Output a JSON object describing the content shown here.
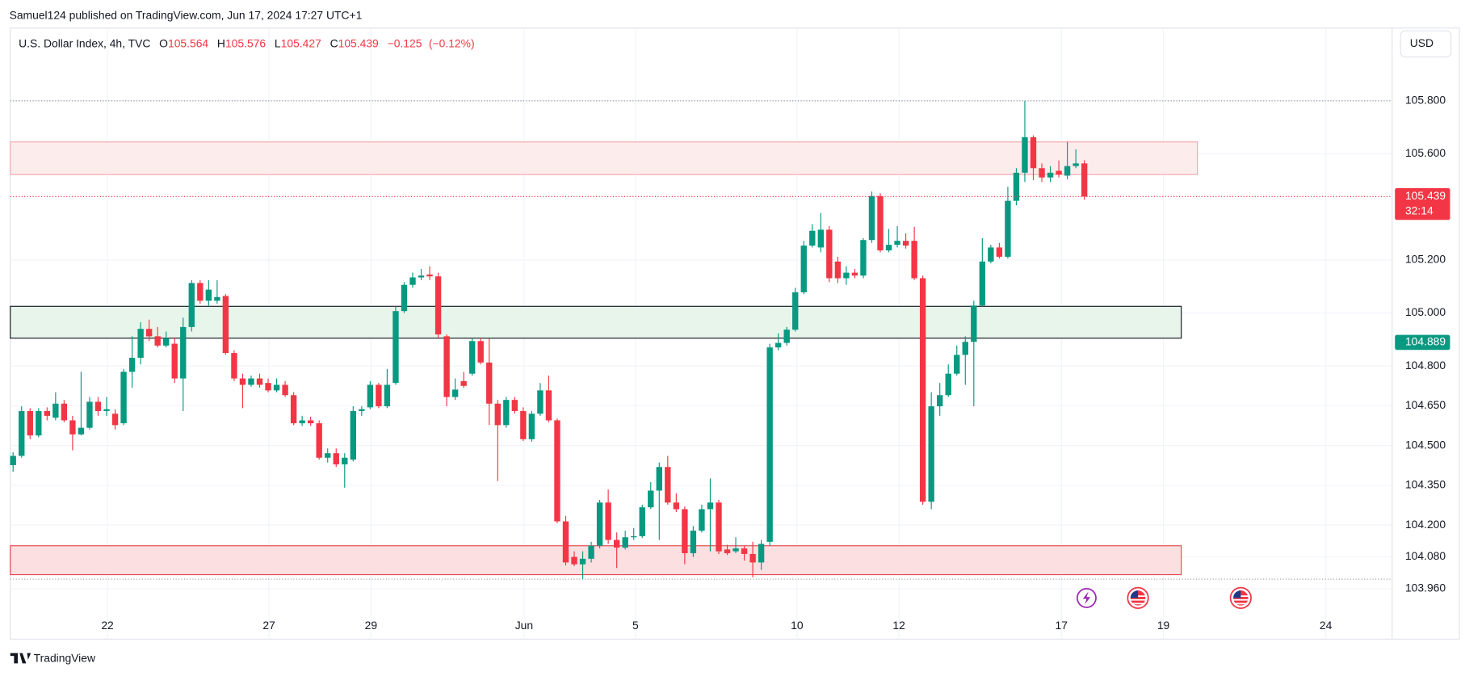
{
  "header": {
    "title": "Samuel124 published on TradingView.com, Jun 17, 2024 17:27 UTC+1"
  },
  "footer": {
    "brand": "TradingView"
  },
  "currency_button": "USD",
  "chart_data": {
    "type": "candlestick",
    "legend": {
      "title": "U.S. Dollar Index, 4h, TVC",
      "letters": [
        "O",
        "H",
        "L",
        "C"
      ],
      "values": [
        105.564,
        105.576,
        105.427,
        105.439
      ],
      "change": {
        "value": -0.125,
        "label": "−0.125"
      },
      "change_pct": {
        "value": -0.12,
        "label": "(−0.12%)"
      }
    },
    "up_color": "#089981",
    "down_color": "#f23645",
    "xlim": [
      -0.33,
      162.2
    ],
    "ylim": [
      103.77,
      106.057
    ],
    "grid": true,
    "xticks": [
      {
        "value": 11.1,
        "label": "22"
      },
      {
        "value": 30.1,
        "label": "27"
      },
      {
        "value": 42.1,
        "label": "29"
      },
      {
        "value": 60.1,
        "label": "Jun"
      },
      {
        "value": 73.2,
        "label": "5"
      },
      {
        "value": 92.2,
        "label": "10"
      },
      {
        "value": 104.2,
        "label": "12"
      },
      {
        "value": 123.3,
        "label": "17"
      },
      {
        "value": 135.3,
        "label": "19"
      },
      {
        "value": 154.4,
        "label": "24"
      }
    ],
    "yticks": [
      {
        "value": 105.8,
        "label": "105.800"
      },
      {
        "value": 105.6,
        "label": "105.600"
      },
      {
        "value": 105.2,
        "label": "105.200"
      },
      {
        "value": 105.0,
        "label": "105.000"
      },
      {
        "value": 104.8,
        "label": "104.800"
      },
      {
        "value": 104.65,
        "label": "104.650"
      },
      {
        "value": 104.5,
        "label": "104.500"
      },
      {
        "value": 104.35,
        "label": "104.350"
      },
      {
        "value": 104.2,
        "label": "104.200"
      },
      {
        "value": 104.08,
        "label": "104.080"
      },
      {
        "value": 103.96,
        "label": "103.960"
      }
    ],
    "zones": [
      {
        "top": 105.645,
        "bottom": 105.522,
        "end": 139.3,
        "fill": "#fdecec",
        "stroke": "#f3a6ab"
      },
      {
        "top": 105.025,
        "bottom": 104.905,
        "end": 137.4,
        "fill": "#e8f5ea",
        "stroke": "#131722"
      },
      {
        "top": 104.122,
        "bottom": 104.013,
        "end": 137.4,
        "fill": "#fbdfe1",
        "stroke": "#e5474f"
      }
    ],
    "range_lines": [
      105.8,
      103.996
    ],
    "countdown": "32:14",
    "indicator_label": {
      "value": 104.889,
      "color": "#089981"
    },
    "ohlc": [
      [
        104.426,
        104.475,
        104.401,
        104.461
      ],
      [
        104.461,
        104.648,
        104.454,
        104.63
      ],
      [
        104.63,
        104.641,
        104.524,
        104.538
      ],
      [
        104.538,
        104.641,
        104.531,
        104.63
      ],
      [
        104.63,
        104.644,
        104.595,
        104.612
      ],
      [
        104.605,
        104.701,
        104.595,
        104.658
      ],
      [
        104.658,
        104.672,
        104.588,
        104.595
      ],
      [
        104.595,
        104.612,
        104.482,
        104.542
      ],
      [
        104.542,
        104.778,
        104.538,
        104.567
      ],
      [
        104.567,
        104.683,
        104.56,
        104.665
      ],
      [
        104.665,
        104.683,
        104.612,
        104.63
      ],
      [
        104.63,
        104.683,
        104.612,
        104.637
      ],
      [
        104.62,
        104.637,
        104.56,
        104.577
      ],
      [
        104.584,
        104.789,
        104.577,
        104.778
      ],
      [
        104.778,
        104.912,
        104.718,
        104.831
      ],
      [
        104.831,
        104.965,
        104.806,
        104.94
      ],
      [
        104.94,
        104.975,
        104.894,
        104.912
      ],
      [
        104.912,
        104.947,
        104.87,
        104.877
      ],
      [
        104.877,
        104.93,
        104.87,
        104.905
      ],
      [
        104.884,
        104.905,
        104.736,
        104.753
      ],
      [
        104.753,
        104.982,
        104.63,
        104.947
      ],
      [
        104.947,
        105.124,
        104.93,
        105.113
      ],
      [
        105.113,
        105.124,
        105.035,
        105.046
      ],
      [
        105.046,
        105.124,
        105.025,
        105.088
      ],
      [
        105.046,
        105.124,
        105.035,
        105.06
      ],
      [
        105.064,
        105.071,
        104.842,
        104.849
      ],
      [
        104.849,
        104.859,
        104.743,
        104.753
      ],
      [
        104.753,
        104.771,
        104.641,
        104.729
      ],
      [
        104.729,
        104.764,
        104.722,
        104.753
      ],
      [
        104.753,
        104.771,
        104.718,
        104.729
      ],
      [
        104.736,
        104.753,
        104.701,
        104.708
      ],
      [
        104.708,
        104.753,
        104.701,
        104.729
      ],
      [
        104.729,
        104.743,
        104.683,
        104.69
      ],
      [
        104.69,
        104.701,
        104.577,
        104.584
      ],
      [
        104.584,
        104.612,
        104.574,
        104.595
      ],
      [
        104.595,
        104.609,
        104.574,
        104.584
      ],
      [
        104.584,
        104.595,
        104.447,
        104.454
      ],
      [
        104.454,
        104.489,
        104.436,
        104.471
      ],
      [
        104.471,
        104.489,
        104.419,
        104.429
      ],
      [
        104.429,
        104.471,
        104.341,
        104.454
      ],
      [
        104.447,
        104.648,
        104.44,
        104.63
      ],
      [
        104.63,
        104.648,
        104.612,
        104.637
      ],
      [
        104.644,
        104.743,
        104.637,
        104.729
      ],
      [
        104.729,
        104.736,
        104.641,
        104.648
      ],
      [
        104.648,
        104.789,
        104.641,
        104.729
      ],
      [
        104.736,
        105.025,
        104.729,
        105.007
      ],
      [
        105.007,
        105.116,
        105.0,
        105.106
      ],
      [
        105.106,
        105.152,
        105.095,
        105.134
      ],
      [
        105.134,
        105.166,
        105.124,
        105.141
      ],
      [
        105.145,
        105.176,
        105.124,
        105.138
      ],
      [
        105.138,
        105.152,
        104.905,
        104.919
      ],
      [
        104.912,
        104.919,
        104.648,
        104.683
      ],
      [
        104.683,
        104.753,
        104.672,
        104.711
      ],
      [
        104.743,
        104.778,
        104.718,
        104.725
      ],
      [
        104.771,
        104.905,
        104.764,
        104.894
      ],
      [
        104.894,
        104.905,
        104.806,
        104.813
      ],
      [
        104.813,
        104.905,
        104.577,
        104.658
      ],
      [
        104.658,
        104.672,
        104.366,
        104.577
      ],
      [
        104.577,
        104.683,
        104.567,
        104.672
      ],
      [
        104.672,
        104.683,
        104.62,
        104.63
      ],
      [
        104.63,
        104.644,
        104.517,
        104.524
      ],
      [
        104.524,
        104.63,
        104.514,
        104.62
      ],
      [
        104.62,
        104.736,
        104.612,
        104.708
      ],
      [
        104.708,
        104.764,
        104.588,
        104.595
      ],
      [
        104.595,
        104.602,
        104.207,
        104.214
      ],
      [
        104.214,
        104.235,
        104.048,
        104.059
      ],
      [
        104.08,
        104.101,
        104.045,
        104.052
      ],
      [
        104.052,
        104.101,
        103.996,
        104.073
      ],
      [
        104.073,
        104.137,
        104.059,
        104.122
      ],
      [
        104.122,
        104.295,
        104.112,
        104.285
      ],
      [
        104.285,
        104.334,
        104.129,
        104.144
      ],
      [
        104.144,
        104.172,
        104.038,
        104.115
      ],
      [
        104.115,
        104.179,
        104.108,
        104.154
      ],
      [
        104.154,
        104.189,
        104.144,
        104.158
      ],
      [
        104.158,
        104.277,
        104.151,
        104.267
      ],
      [
        104.267,
        104.362,
        104.26,
        104.33
      ],
      [
        104.33,
        104.436,
        104.144,
        104.419
      ],
      [
        104.419,
        104.461,
        104.277,
        104.285
      ],
      [
        104.285,
        104.32,
        104.249,
        104.26
      ],
      [
        104.26,
        104.27,
        104.052,
        104.094
      ],
      [
        104.094,
        104.196,
        104.08,
        104.179
      ],
      [
        104.179,
        104.277,
        104.172,
        104.26
      ],
      [
        104.26,
        104.376,
        104.101,
        104.285
      ],
      [
        104.285,
        104.295,
        104.091,
        104.101
      ],
      [
        104.108,
        104.126,
        104.087,
        104.094
      ],
      [
        104.101,
        104.154,
        104.094,
        104.112
      ],
      [
        104.112,
        104.122,
        104.066,
        104.091
      ],
      [
        104.091,
        104.137,
        104.003,
        104.059
      ],
      [
        104.059,
        104.144,
        104.031,
        104.129
      ],
      [
        104.137,
        104.884,
        104.122,
        104.87
      ],
      [
        104.87,
        104.923,
        104.859,
        104.887
      ],
      [
        104.887,
        104.947,
        104.877,
        104.937
      ],
      [
        104.937,
        105.095,
        104.93,
        105.078
      ],
      [
        105.078,
        105.272,
        105.071,
        105.254
      ],
      [
        105.254,
        105.335,
        105.247,
        105.31
      ],
      [
        105.247,
        105.377,
        105.229,
        105.314
      ],
      [
        105.314,
        105.328,
        105.116,
        105.131
      ],
      [
        105.194,
        105.212,
        105.113,
        105.131
      ],
      [
        105.131,
        105.176,
        105.106,
        105.152
      ],
      [
        105.152,
        105.166,
        105.131,
        105.141
      ],
      [
        105.141,
        105.282,
        105.131,
        105.275
      ],
      [
        105.275,
        105.458,
        105.264,
        105.441
      ],
      [
        105.441,
        105.451,
        105.229,
        105.236
      ],
      [
        105.236,
        105.317,
        105.229,
        105.257
      ],
      [
        105.257,
        105.328,
        105.247,
        105.272
      ],
      [
        105.272,
        105.3,
        105.243,
        105.254
      ],
      [
        105.272,
        105.325,
        105.124,
        105.131
      ],
      [
        105.131,
        105.141,
        104.277,
        104.288
      ],
      [
        104.288,
        104.701,
        104.26,
        104.648
      ],
      [
        104.648,
        104.736,
        104.612,
        104.69
      ],
      [
        104.69,
        104.806,
        104.683,
        104.771
      ],
      [
        104.771,
        104.877,
        104.764,
        104.842
      ],
      [
        104.842,
        104.912,
        104.729,
        104.891
      ],
      [
        104.891,
        105.046,
        104.648,
        105.028
      ],
      [
        105.028,
        105.282,
        105.025,
        105.194
      ],
      [
        105.194,
        105.257,
        105.187,
        105.247
      ],
      [
        105.247,
        105.264,
        105.205,
        105.212
      ],
      [
        105.212,
        105.476,
        105.205,
        105.423
      ],
      [
        105.423,
        105.546,
        105.406,
        105.529
      ],
      [
        105.529,
        105.8,
        105.494,
        105.663
      ],
      [
        105.663,
        105.67,
        105.501,
        105.546
      ],
      [
        105.546,
        105.564,
        105.494,
        105.511
      ],
      [
        105.511,
        105.554,
        105.494,
        105.529
      ],
      [
        105.536,
        105.575,
        105.511,
        105.522
      ],
      [
        105.518,
        105.645,
        105.504,
        105.554
      ],
      [
        105.554,
        105.617,
        105.546,
        105.564
      ],
      [
        105.564,
        105.576,
        105.427,
        105.439
      ]
    ]
  }
}
